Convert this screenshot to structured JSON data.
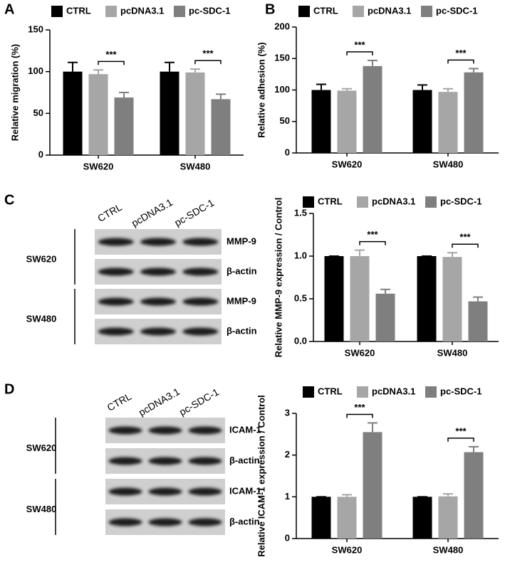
{
  "chart_data": [
    {
      "panel": "A",
      "type": "bar",
      "ylabel": "Relative migration (%)",
      "categories": [
        "SW620",
        "SW480"
      ],
      "series": [
        {
          "name": "CTRL",
          "color": "#000000",
          "values": [
            100,
            100
          ],
          "errors": [
            11,
            11
          ]
        },
        {
          "name": "pcDNA3.1",
          "color": "#a6a6a6",
          "values": [
            97,
            99
          ],
          "errors": [
            5,
            4
          ]
        },
        {
          "name": "pc-SDC-1",
          "color": "#7f7f7f",
          "values": [
            69,
            67
          ],
          "errors": [
            6,
            6
          ]
        }
      ],
      "significance": [
        "***",
        "***"
      ],
      "ylim": [
        0,
        150
      ],
      "yticks": [
        0,
        50,
        100,
        150
      ]
    },
    {
      "panel": "B",
      "type": "bar",
      "ylabel": "Relative adhesion (%)",
      "categories": [
        "SW620",
        "SW480"
      ],
      "series": [
        {
          "name": "CTRL",
          "color": "#000000",
          "values": [
            100,
            100
          ],
          "errors": [
            9,
            8
          ]
        },
        {
          "name": "pcDNA3.1",
          "color": "#a6a6a6",
          "values": [
            99,
            97
          ],
          "errors": [
            3,
            5
          ]
        },
        {
          "name": "pc-SDC-1",
          "color": "#7f7f7f",
          "values": [
            138,
            128
          ],
          "errors": [
            9,
            6
          ]
        }
      ],
      "significance": [
        "***",
        "***"
      ],
      "ylim": [
        0,
        200
      ],
      "yticks": [
        0,
        50,
        100,
        150,
        200
      ]
    },
    {
      "type": "bar",
      "ylabel": "Relative MMP-9 expression / Control",
      "categories": [
        "SW620",
        "SW480"
      ],
      "series": [
        {
          "name": "CTRL",
          "color": "#000000",
          "values": [
            1,
            1
          ],
          "errors": [
            0,
            0
          ]
        },
        {
          "name": "pcDNA3.1",
          "color": "#a6a6a6",
          "values": [
            1,
            0.99
          ],
          "errors": [
            0.07,
            0.05
          ]
        },
        {
          "name": "pc-SDC-1",
          "color": "#7f7f7f",
          "values": [
            0.56,
            0.47
          ],
          "errors": [
            0.05,
            0.05
          ]
        }
      ],
      "significance": [
        "***",
        "***"
      ],
      "ylim": [
        0,
        1.5
      ],
      "yticks": [
        {
          "value": 0,
          "label": "0.0"
        },
        0.5,
        {
          "value": 1,
          "label": "1.0"
        },
        1.5
      ]
    },
    {
      "type": "bar",
      "ylabel": "Relative ICAM-1 expression / Control",
      "categories": [
        "SW620",
        "SW480"
      ],
      "series": [
        {
          "name": "CTRL",
          "color": "#000000",
          "values": [
            1,
            1
          ],
          "errors": [
            0,
            0
          ]
        },
        {
          "name": "pcDNA3.1",
          "color": "#a6a6a6",
          "values": [
            1,
            1.01
          ],
          "errors": [
            0.05,
            0.06
          ]
        },
        {
          "name": "pc-SDC-1",
          "color": "#7f7f7f",
          "values": [
            2.55,
            2.07
          ],
          "errors": [
            0.22,
            0.13
          ]
        }
      ],
      "significance": [
        "***",
        "***"
      ],
      "ylim": [
        0,
        3
      ],
      "yticks": [
        0,
        1,
        2,
        3
      ]
    }
  ],
  "blots": [
    {
      "panel": "C",
      "lanes": [
        "CTRL",
        "pcDNA3.1",
        "pc-SDC-1"
      ],
      "groups": [
        {
          "name": "SW620",
          "rows": [
            "MMP-9",
            "β-actin"
          ]
        },
        {
          "name": "SW480",
          "rows": [
            "MMP-9",
            "β-actin"
          ]
        }
      ]
    },
    {
      "panel": "D",
      "lanes": [
        "CTRL",
        "pcDNA3.1",
        "pc-SDC-1"
      ],
      "groups": [
        {
          "name": "SW620",
          "rows": [
            "ICAM-1",
            "β-actin"
          ]
        },
        {
          "name": "SW480",
          "rows": [
            "ICAM-1",
            "β-actin"
          ]
        }
      ]
    }
  ]
}
